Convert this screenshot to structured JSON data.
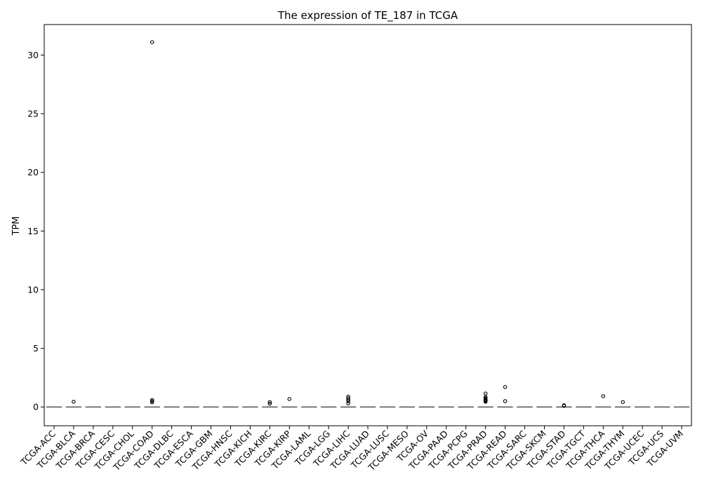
{
  "chart_data": {
    "type": "box",
    "title": "The expression of TE_187 in TCGA",
    "xlabel": "",
    "ylabel": "TPM",
    "ylim": [
      -1.6,
      32.6
    ],
    "yticks": [
      0,
      5,
      10,
      15,
      20,
      25,
      30
    ],
    "grid": false,
    "legend": "none",
    "box_color": "#555555",
    "outlier_color": "#000000",
    "categories": [
      "TCGA-ACC",
      "TCGA-BLCA",
      "TCGA-BRCA",
      "TCGA-CESC",
      "TCGA-CHOL",
      "TCGA-COAD",
      "TCGA-DLBC",
      "TCGA-ESCA",
      "TCGA-GBM",
      "TCGA-HNSC",
      "TCGA-KICH",
      "TCGA-KIRC",
      "TCGA-KIRP",
      "TCGA-LAML",
      "TCGA-LGG",
      "TCGA-LIHC",
      "TCGA-LUAD",
      "TCGA-LUSC",
      "TCGA-MESO",
      "TCGA-OV",
      "TCGA-PAAD",
      "TCGA-PCPG",
      "TCGA-PRAD",
      "TCGA-READ",
      "TCGA-SARC",
      "TCGA-SKCM",
      "TCGA-STAD",
      "TCGA-TGCT",
      "TCGA-THCA",
      "TCGA-THYM",
      "TCGA-UCEC",
      "TCGA-UCS",
      "TCGA-UVM"
    ],
    "median": [
      0,
      0,
      0,
      0,
      0,
      0,
      0,
      0,
      0,
      0,
      0,
      0,
      0,
      0,
      0,
      0,
      0,
      0,
      0,
      0,
      0,
      0,
      0,
      0,
      0,
      0,
      0,
      0,
      0,
      0,
      0,
      0,
      0
    ],
    "outliers": [
      [],
      [
        0.45
      ],
      [],
      [],
      [],
      [
        31.1,
        0.6,
        0.5,
        0.4
      ],
      [],
      [],
      [],
      [],
      [],
      [
        0.42,
        0.28
      ],
      [
        0.68
      ],
      [],
      [],
      [
        0.88,
        0.75,
        0.62,
        0.5,
        0.3
      ],
      [],
      [],
      [],
      [],
      [],
      [],
      [
        1.15,
        0.85,
        0.75,
        0.68,
        0.6,
        0.55,
        0.5,
        0.45
      ],
      [
        1.7,
        0.5
      ],
      [],
      [],
      [
        0.15,
        0.1
      ],
      [],
      [
        0.92
      ],
      [
        0.42
      ],
      [],
      [],
      []
    ]
  }
}
